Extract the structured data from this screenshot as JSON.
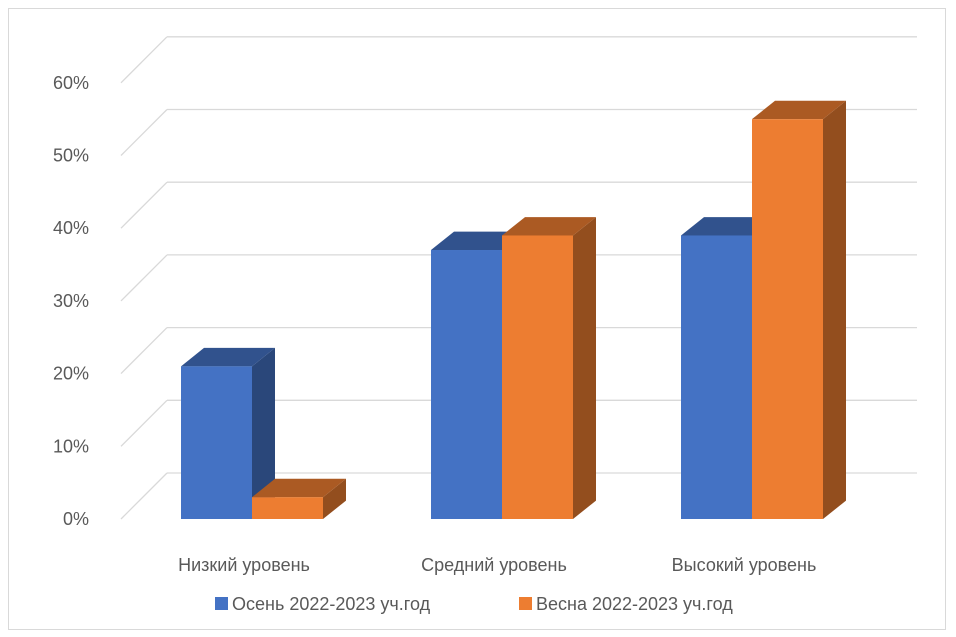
{
  "chart_data": {
    "type": "bar",
    "title": "",
    "xlabel": "",
    "ylabel": "",
    "categories": [
      "Низкий уровень",
      "Средний уровень",
      "Высокий уровень"
    ],
    "series": [
      {
        "name": "Осень 2022-2023 уч.год",
        "color": "#4472c4",
        "values": [
          21,
          37,
          39
        ]
      },
      {
        "name": "Весна 2022-2023 уч.год",
        "color": "#ed7d31",
        "values": [
          3,
          39,
          55
        ]
      }
    ],
    "ylim": [
      0,
      60
    ],
    "yticks": [
      "0%",
      "10%",
      "20%",
      "30%",
      "40%",
      "50%",
      "60%"
    ],
    "grid": true,
    "legend": "bottom"
  }
}
